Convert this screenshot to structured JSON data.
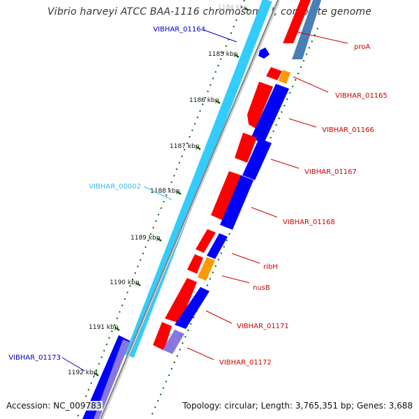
{
  "title": "Vibrio harveyi ATCC BAA-1116 chromosome I, complete genome",
  "footer": {
    "accession": "Accession: NC_009783",
    "summary": "Topology: circular; Length: 3,765,351 bp; Genes: 3,688"
  },
  "ruler": {
    "labels": [
      "1184 kbp",
      "1185 kbp",
      "1186 kbp",
      "1187 kbp",
      "1188 kbp",
      "1189 kbp",
      "1190 kbp",
      "1191 kbp",
      "1192 kbp"
    ]
  },
  "colors": {
    "cds": "#ff0000",
    "gene": "#0000ff",
    "rrna_like": "#ff9900",
    "pseudo": "#8877dd",
    "steel": "#4a7fb5",
    "backbone_light": "#33ccff",
    "backbone_grey": "#888888",
    "tick": "#006600",
    "label_red": "#cc0000",
    "label_blue": "#0000cc",
    "label_cyan": "#33bbee"
  },
  "gene_labels": [
    {
      "id": "proA",
      "text": "proA",
      "color": "red"
    },
    {
      "id": "vibhar-01165",
      "text": "VIBHAR_01165",
      "color": "red"
    },
    {
      "id": "vibhar-01166",
      "text": "VIBHAR_01166",
      "color": "red"
    },
    {
      "id": "vibhar-01167",
      "text": "VIBHAR_01167",
      "color": "red"
    },
    {
      "id": "vibhar-01168",
      "text": "VIBHAR_01168",
      "color": "red"
    },
    {
      "id": "ribH",
      "text": "ribH",
      "color": "red"
    },
    {
      "id": "nusB",
      "text": "nusB",
      "color": "red"
    },
    {
      "id": "vibhar-01171",
      "text": "VIBHAR_01171",
      "color": "red"
    },
    {
      "id": "vibhar-01172",
      "text": "VIBHAR_01172",
      "color": "red"
    },
    {
      "id": "vibhar-01164",
      "text": "VIBHAR_01164",
      "color": "blue"
    },
    {
      "id": "vibhar-00002",
      "text": "VIBHAR_00002",
      "color": "cyan"
    },
    {
      "id": "vibhar-01173",
      "text": "VIBHAR_01173",
      "color": "blue"
    }
  ]
}
